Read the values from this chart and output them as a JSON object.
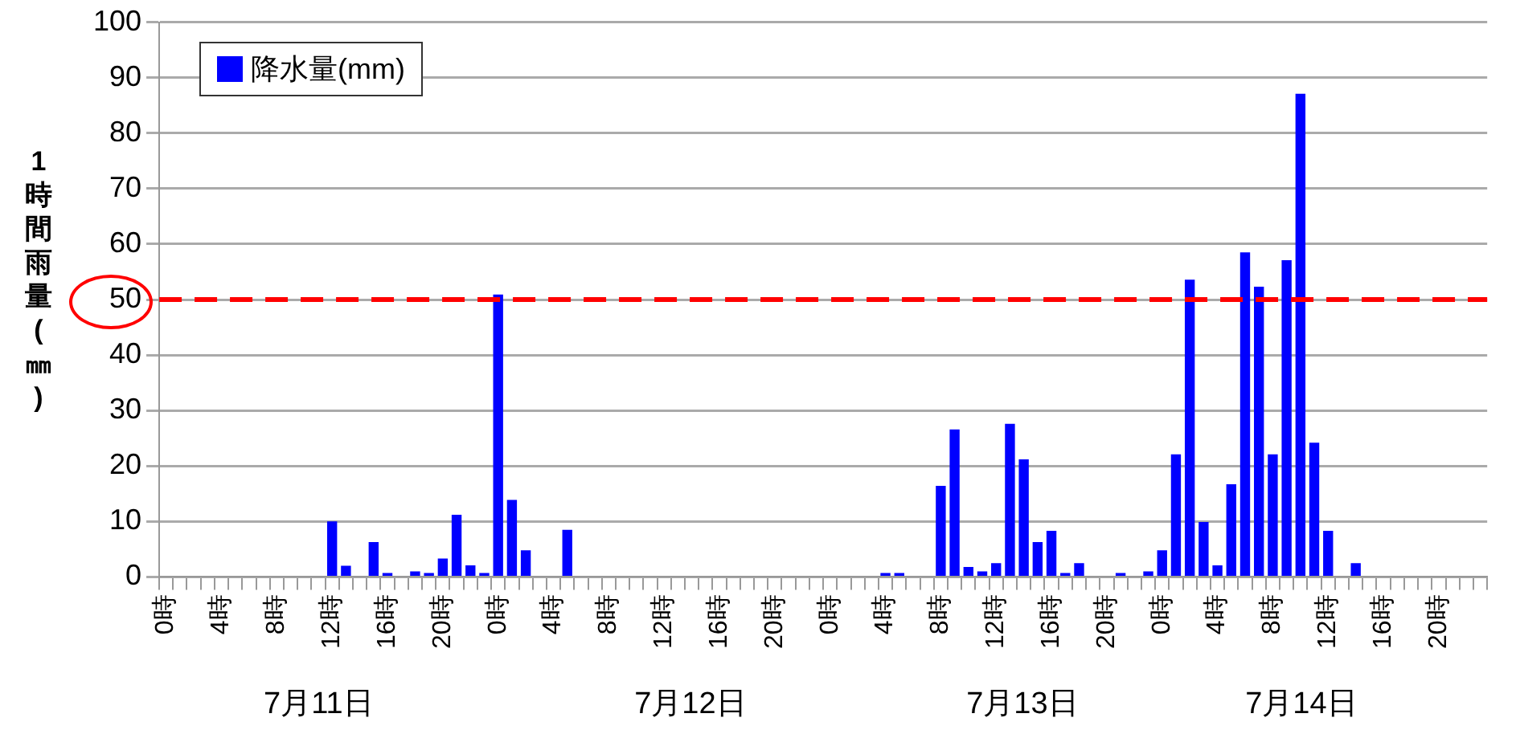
{
  "chart_data": {
    "type": "bar",
    "ylabel": "1時間雨量(㎜)",
    "categories": [
      "0時",
      null,
      null,
      null,
      "4時",
      null,
      null,
      null,
      "8時",
      null,
      null,
      null,
      "12時",
      null,
      null,
      null,
      "16時",
      null,
      null,
      null,
      "20時",
      null,
      null,
      null,
      "0時",
      null,
      null,
      null,
      "4時",
      null,
      null,
      null,
      "8時",
      null,
      null,
      null,
      "12時",
      null,
      null,
      null,
      "16時",
      null,
      null,
      null,
      "20時",
      null,
      null,
      null,
      "0時",
      null,
      null,
      null,
      "4時",
      null,
      null,
      null,
      "8時",
      null,
      null,
      null,
      "12時",
      null,
      null,
      null,
      "16時",
      null,
      null,
      null,
      "20時",
      null,
      null,
      null,
      "0時",
      null,
      null,
      null,
      "4時",
      null,
      null,
      null,
      "8時",
      null,
      null,
      null,
      "12時",
      null,
      null,
      null,
      "16時",
      null,
      null,
      null,
      "20時",
      null,
      null,
      null
    ],
    "series": [
      {
        "name": "降水量(mm)",
        "color": "#0000ff",
        "values": [
          0,
          0,
          0,
          0,
          0,
          0,
          0,
          0,
          0,
          0,
          0,
          0,
          10,
          2,
          0,
          6.3,
          0.7,
          0,
          1,
          0.7,
          3.3,
          11.2,
          2.1,
          0.7,
          50.9,
          13.9,
          4.8,
          0,
          0,
          8.5,
          0,
          0,
          0,
          0,
          0,
          0,
          0,
          0,
          0,
          0,
          0,
          0,
          0,
          0,
          0,
          0,
          0,
          0,
          0,
          0,
          0,
          0,
          0.7,
          0.7,
          0,
          0,
          16.4,
          26.6,
          1.8,
          1,
          2.5,
          27.6,
          21.2,
          6.3,
          8.3,
          0.7,
          2.5,
          0,
          0,
          0.7,
          0,
          1,
          4.8,
          22.1,
          53.6,
          9.9,
          2.1,
          16.7,
          58.5,
          52.3,
          22.1,
          57.1,
          87.1,
          24.2,
          8.3,
          0,
          2.5,
          0,
          0,
          0,
          0,
          0,
          0,
          0,
          0,
          0
        ]
      }
    ],
    "ylim": [
      0,
      100
    ],
    "yticks": [
      0,
      10,
      20,
      30,
      40,
      50,
      60,
      70,
      80,
      90,
      100
    ],
    "grid": "y",
    "legend": "top left",
    "ref_lines": [
      {
        "axis": "y",
        "value": 50,
        "color": "#ff0000",
        "line_style": "dashed"
      }
    ],
    "annotations": [
      "7月11日",
      "7月12日",
      "7月13日",
      "7月14日"
    ]
  }
}
